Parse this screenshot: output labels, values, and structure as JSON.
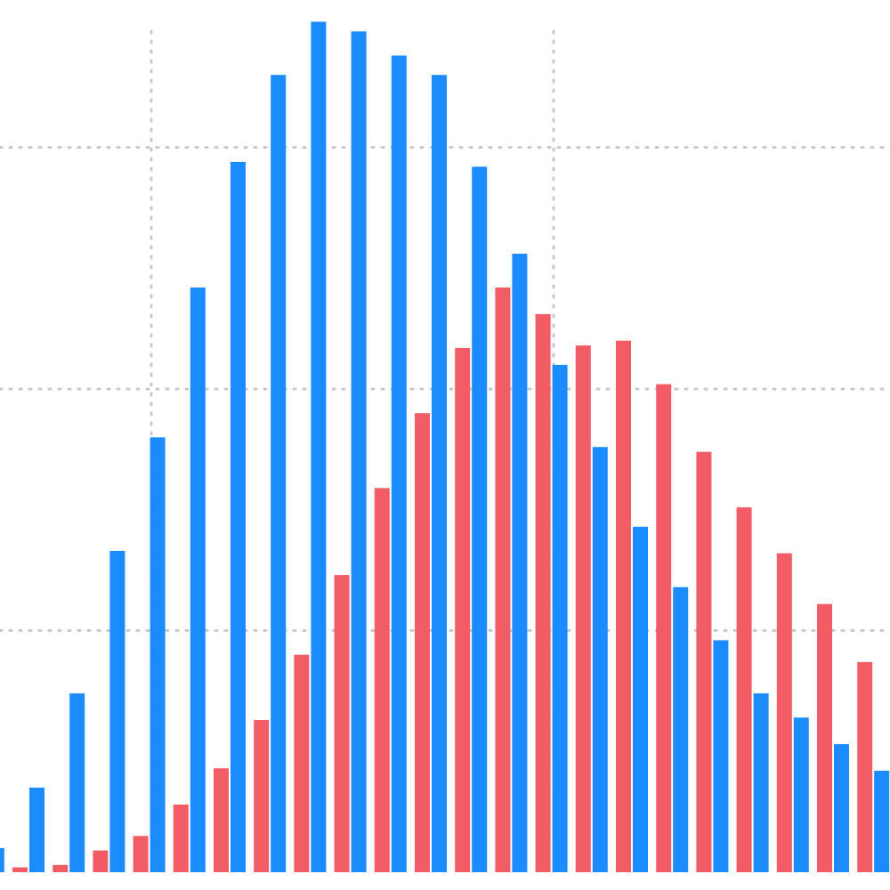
{
  "chart_data": {
    "type": "bar",
    "categories": [
      null,
      null,
      null,
      null,
      null,
      null,
      null,
      null,
      null,
      null,
      null,
      null,
      null,
      null,
      null,
      null,
      null,
      null,
      null,
      null,
      null,
      null,
      null
    ],
    "series": [
      {
        "color": "#f25c66",
        "values": [
          null,
          0.02,
          0.03,
          0.09,
          0.15,
          0.28,
          0.43,
          0.63,
          0.9,
          1.23,
          1.59,
          1.9,
          2.17,
          2.42,
          2.31,
          2.18,
          2.2,
          2.02,
          1.74,
          1.51,
          1.32,
          1.11,
          0.87
        ]
      },
      {
        "color": "#1a8cff",
        "values": [
          0.1,
          0.35,
          0.74,
          1.33,
          1.8,
          2.42,
          2.94,
          3.3,
          3.52,
          3.48,
          3.38,
          3.3,
          2.92,
          2.56,
          2.1,
          1.76,
          1.43,
          1.18,
          0.96,
          0.74,
          0.64,
          0.53,
          0.42
        ]
      }
    ],
    "ylim": [
      0,
      3.61
    ],
    "yticks": [
      1,
      2,
      3
    ],
    "grid": true
  }
}
